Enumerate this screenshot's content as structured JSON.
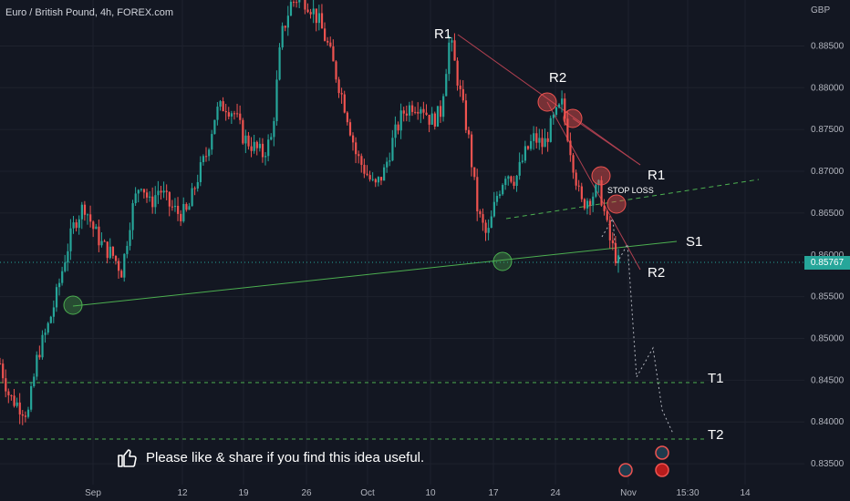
{
  "header": {
    "symbol": "Euro / British Pound, 4h, FOREX.com"
  },
  "price_axis": {
    "currency": "GBP",
    "ticks": [
      "0.88500",
      "0.88000",
      "0.87500",
      "0.87000",
      "0.86500",
      "0.86000",
      "0.85500",
      "0.85000",
      "0.84500",
      "0.84000",
      "0.83500"
    ],
    "current_price": "0.85767"
  },
  "time_axis": {
    "ticks": [
      "Sep",
      "12",
      "19",
      "26",
      "Oct",
      "10",
      "17",
      "24",
      "Nov",
      "15:30",
      "14"
    ]
  },
  "callout": {
    "text": "Please like & share if you find this idea useful."
  },
  "annotations": {
    "r1_top": "R1",
    "r2_top": "R2",
    "r1_right": "R1",
    "r2_right": "R2",
    "s1": "S1",
    "t1": "T1",
    "t2": "T2",
    "stop_loss": "STOP LOSS"
  },
  "colors": {
    "background": "#131722",
    "up": "#26a69a",
    "down": "#ef5350",
    "grid": "#1e222d",
    "support": "#4caf50",
    "resistance": "#b04050"
  },
  "chart_data": {
    "type": "candlestick",
    "symbol": "Euro / British Pound, 4h, FOREX.com",
    "ylim": [
      0.8325,
      0.8905
    ],
    "y_ticks": [
      0.885,
      0.88,
      0.875,
      0.87,
      0.865,
      0.86,
      0.855,
      0.85,
      0.845,
      0.84,
      0.835
    ],
    "x_ticks": [
      "Sep",
      "12",
      "19",
      "26",
      "Oct",
      "10",
      "17",
      "24",
      "Nov",
      "15:30",
      "14"
    ],
    "current_price": 0.85767,
    "price_path": [
      0.847,
      0.843,
      0.842,
      0.841,
      0.848,
      0.851,
      0.855,
      0.86,
      0.864,
      0.866,
      0.863,
      0.861,
      0.86,
      0.858,
      0.865,
      0.869,
      0.866,
      0.868,
      0.866,
      0.865,
      0.865,
      0.869,
      0.872,
      0.877,
      0.878,
      0.877,
      0.874,
      0.873,
      0.872,
      0.874,
      0.886,
      0.89,
      0.891,
      0.89,
      0.888,
      0.885,
      0.881,
      0.877,
      0.872,
      0.87,
      0.868,
      0.87,
      0.874,
      0.877,
      0.878,
      0.878,
      0.876,
      0.877,
      0.886,
      0.88,
      0.874,
      0.865,
      0.862,
      0.867,
      0.87,
      0.869,
      0.872,
      0.874,
      0.873,
      0.876,
      0.878,
      0.872,
      0.866,
      0.867,
      0.868,
      0.862,
      0.859
    ],
    "levels": [
      {
        "label": "T1",
        "value": 0.8426
      },
      {
        "label": "T2",
        "value": 0.8353
      },
      {
        "label": "current",
        "value": 0.85767
      }
    ]
  }
}
